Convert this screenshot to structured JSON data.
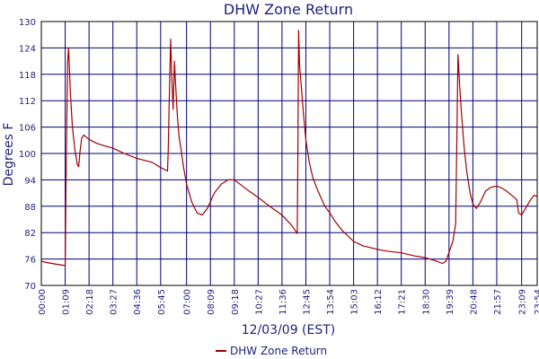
{
  "chart_data": {
    "type": "line",
    "title": "DHW Zone Return",
    "xlabel": "12/03/09 (EST)",
    "ylabel": "Degrees F",
    "ylim": [
      70,
      130
    ],
    "yticks": [
      70,
      76,
      82,
      88,
      94,
      100,
      106,
      112,
      118,
      124,
      130
    ],
    "xlim": [
      "00:00",
      "23:54"
    ],
    "xticks": [
      "00:00",
      "01:09",
      "02:18",
      "03:27",
      "04:36",
      "05:45",
      "07:00",
      "08:09",
      "09:18",
      "10:27",
      "11:36",
      "12:45",
      "13:54",
      "15:03",
      "16:12",
      "17:21",
      "18:30",
      "19:39",
      "20:48",
      "21:57",
      "23:09",
      "23:54"
    ],
    "grid": true,
    "legend": "bottom-center",
    "colors": {
      "series": "#a00000",
      "grid": "#00007a",
      "frame": "#000000"
    },
    "series": [
      {
        "name": "DHW Zone Return",
        "points": [
          [
            "00:00",
            75.5
          ],
          [
            "00:15",
            75.2
          ],
          [
            "00:30",
            75.0
          ],
          [
            "00:45",
            74.8
          ],
          [
            "01:09",
            74.5
          ],
          [
            "01:12",
            98.0
          ],
          [
            "01:16",
            121.0
          ],
          [
            "01:19",
            124.0
          ],
          [
            "01:24",
            114.0
          ],
          [
            "01:30",
            106.0
          ],
          [
            "01:37",
            101.0
          ],
          [
            "01:44",
            97.5
          ],
          [
            "01:48",
            97.0
          ],
          [
            "01:52",
            100.5
          ],
          [
            "01:57",
            103.5
          ],
          [
            "02:03",
            104.2
          ],
          [
            "02:18",
            103.2
          ],
          [
            "02:40",
            102.3
          ],
          [
            "03:00",
            101.8
          ],
          [
            "03:27",
            101.2
          ],
          [
            "04:00",
            100.0
          ],
          [
            "04:36",
            98.9
          ],
          [
            "05:00",
            98.4
          ],
          [
            "05:20",
            98.0
          ],
          [
            "05:45",
            96.8
          ],
          [
            "06:05",
            96.0
          ],
          [
            "06:07",
            101.0
          ],
          [
            "06:11",
            116.0
          ],
          [
            "06:14",
            126.0
          ],
          [
            "06:17",
            118.0
          ],
          [
            "06:21",
            110.0
          ],
          [
            "06:25",
            121.0
          ],
          [
            "06:28",
            116.0
          ],
          [
            "06:33",
            109.0
          ],
          [
            "06:38",
            104.0
          ],
          [
            "06:44",
            101.0
          ],
          [
            "06:50",
            97.5
          ],
          [
            "07:00",
            93.0
          ],
          [
            "07:15",
            89.0
          ],
          [
            "07:30",
            86.5
          ],
          [
            "07:45",
            86.0
          ],
          [
            "08:00",
            87.5
          ],
          [
            "08:09",
            89.0
          ],
          [
            "08:20",
            91.0
          ],
          [
            "08:40",
            93.0
          ],
          [
            "09:00",
            94.0
          ],
          [
            "09:18",
            94.0
          ],
          [
            "09:35",
            93.0
          ],
          [
            "10:00",
            91.5
          ],
          [
            "10:27",
            90.0
          ],
          [
            "11:00",
            88.0
          ],
          [
            "11:36",
            86.0
          ],
          [
            "12:00",
            84.0
          ],
          [
            "12:10",
            83.0
          ],
          [
            "12:20",
            81.8
          ],
          [
            "12:22",
            100.0
          ],
          [
            "12:24",
            128.0
          ],
          [
            "12:27",
            120.0
          ],
          [
            "12:32",
            115.0
          ],
          [
            "12:38",
            109.0
          ],
          [
            "12:45",
            103.0
          ],
          [
            "12:55",
            98.0
          ],
          [
            "13:05",
            94.5
          ],
          [
            "13:20",
            91.5
          ],
          [
            "13:40",
            88.0
          ],
          [
            "13:54",
            86.5
          ],
          [
            "14:10",
            84.5
          ],
          [
            "14:30",
            82.5
          ],
          [
            "15:03",
            80.0
          ],
          [
            "15:30",
            79.0
          ],
          [
            "16:12",
            78.2
          ],
          [
            "16:40",
            77.8
          ],
          [
            "17:21",
            77.4
          ],
          [
            "18:00",
            76.7
          ],
          [
            "18:30",
            76.3
          ],
          [
            "19:00",
            75.6
          ],
          [
            "19:20",
            75.0
          ],
          [
            "19:30",
            75.5
          ],
          [
            "19:39",
            77.5
          ],
          [
            "19:50",
            80.0
          ],
          [
            "19:58",
            84.0
          ],
          [
            "20:02",
            105.0
          ],
          [
            "20:05",
            122.5
          ],
          [
            "20:10",
            115.0
          ],
          [
            "20:16",
            108.0
          ],
          [
            "20:22",
            102.0
          ],
          [
            "20:30",
            96.0
          ],
          [
            "20:40",
            91.0
          ],
          [
            "20:48",
            88.5
          ],
          [
            "20:58",
            87.5
          ],
          [
            "21:10",
            89.0
          ],
          [
            "21:25",
            91.5
          ],
          [
            "21:40",
            92.3
          ],
          [
            "21:57",
            92.6
          ],
          [
            "22:10",
            92.2
          ],
          [
            "22:25",
            91.5
          ],
          [
            "22:40",
            90.5
          ],
          [
            "22:55",
            89.5
          ],
          [
            "23:00",
            86.5
          ],
          [
            "23:09",
            86.0
          ],
          [
            "23:20",
            87.5
          ],
          [
            "23:35",
            89.5
          ],
          [
            "23:45",
            90.5
          ],
          [
            "23:54",
            90.2
          ]
        ]
      }
    ]
  }
}
